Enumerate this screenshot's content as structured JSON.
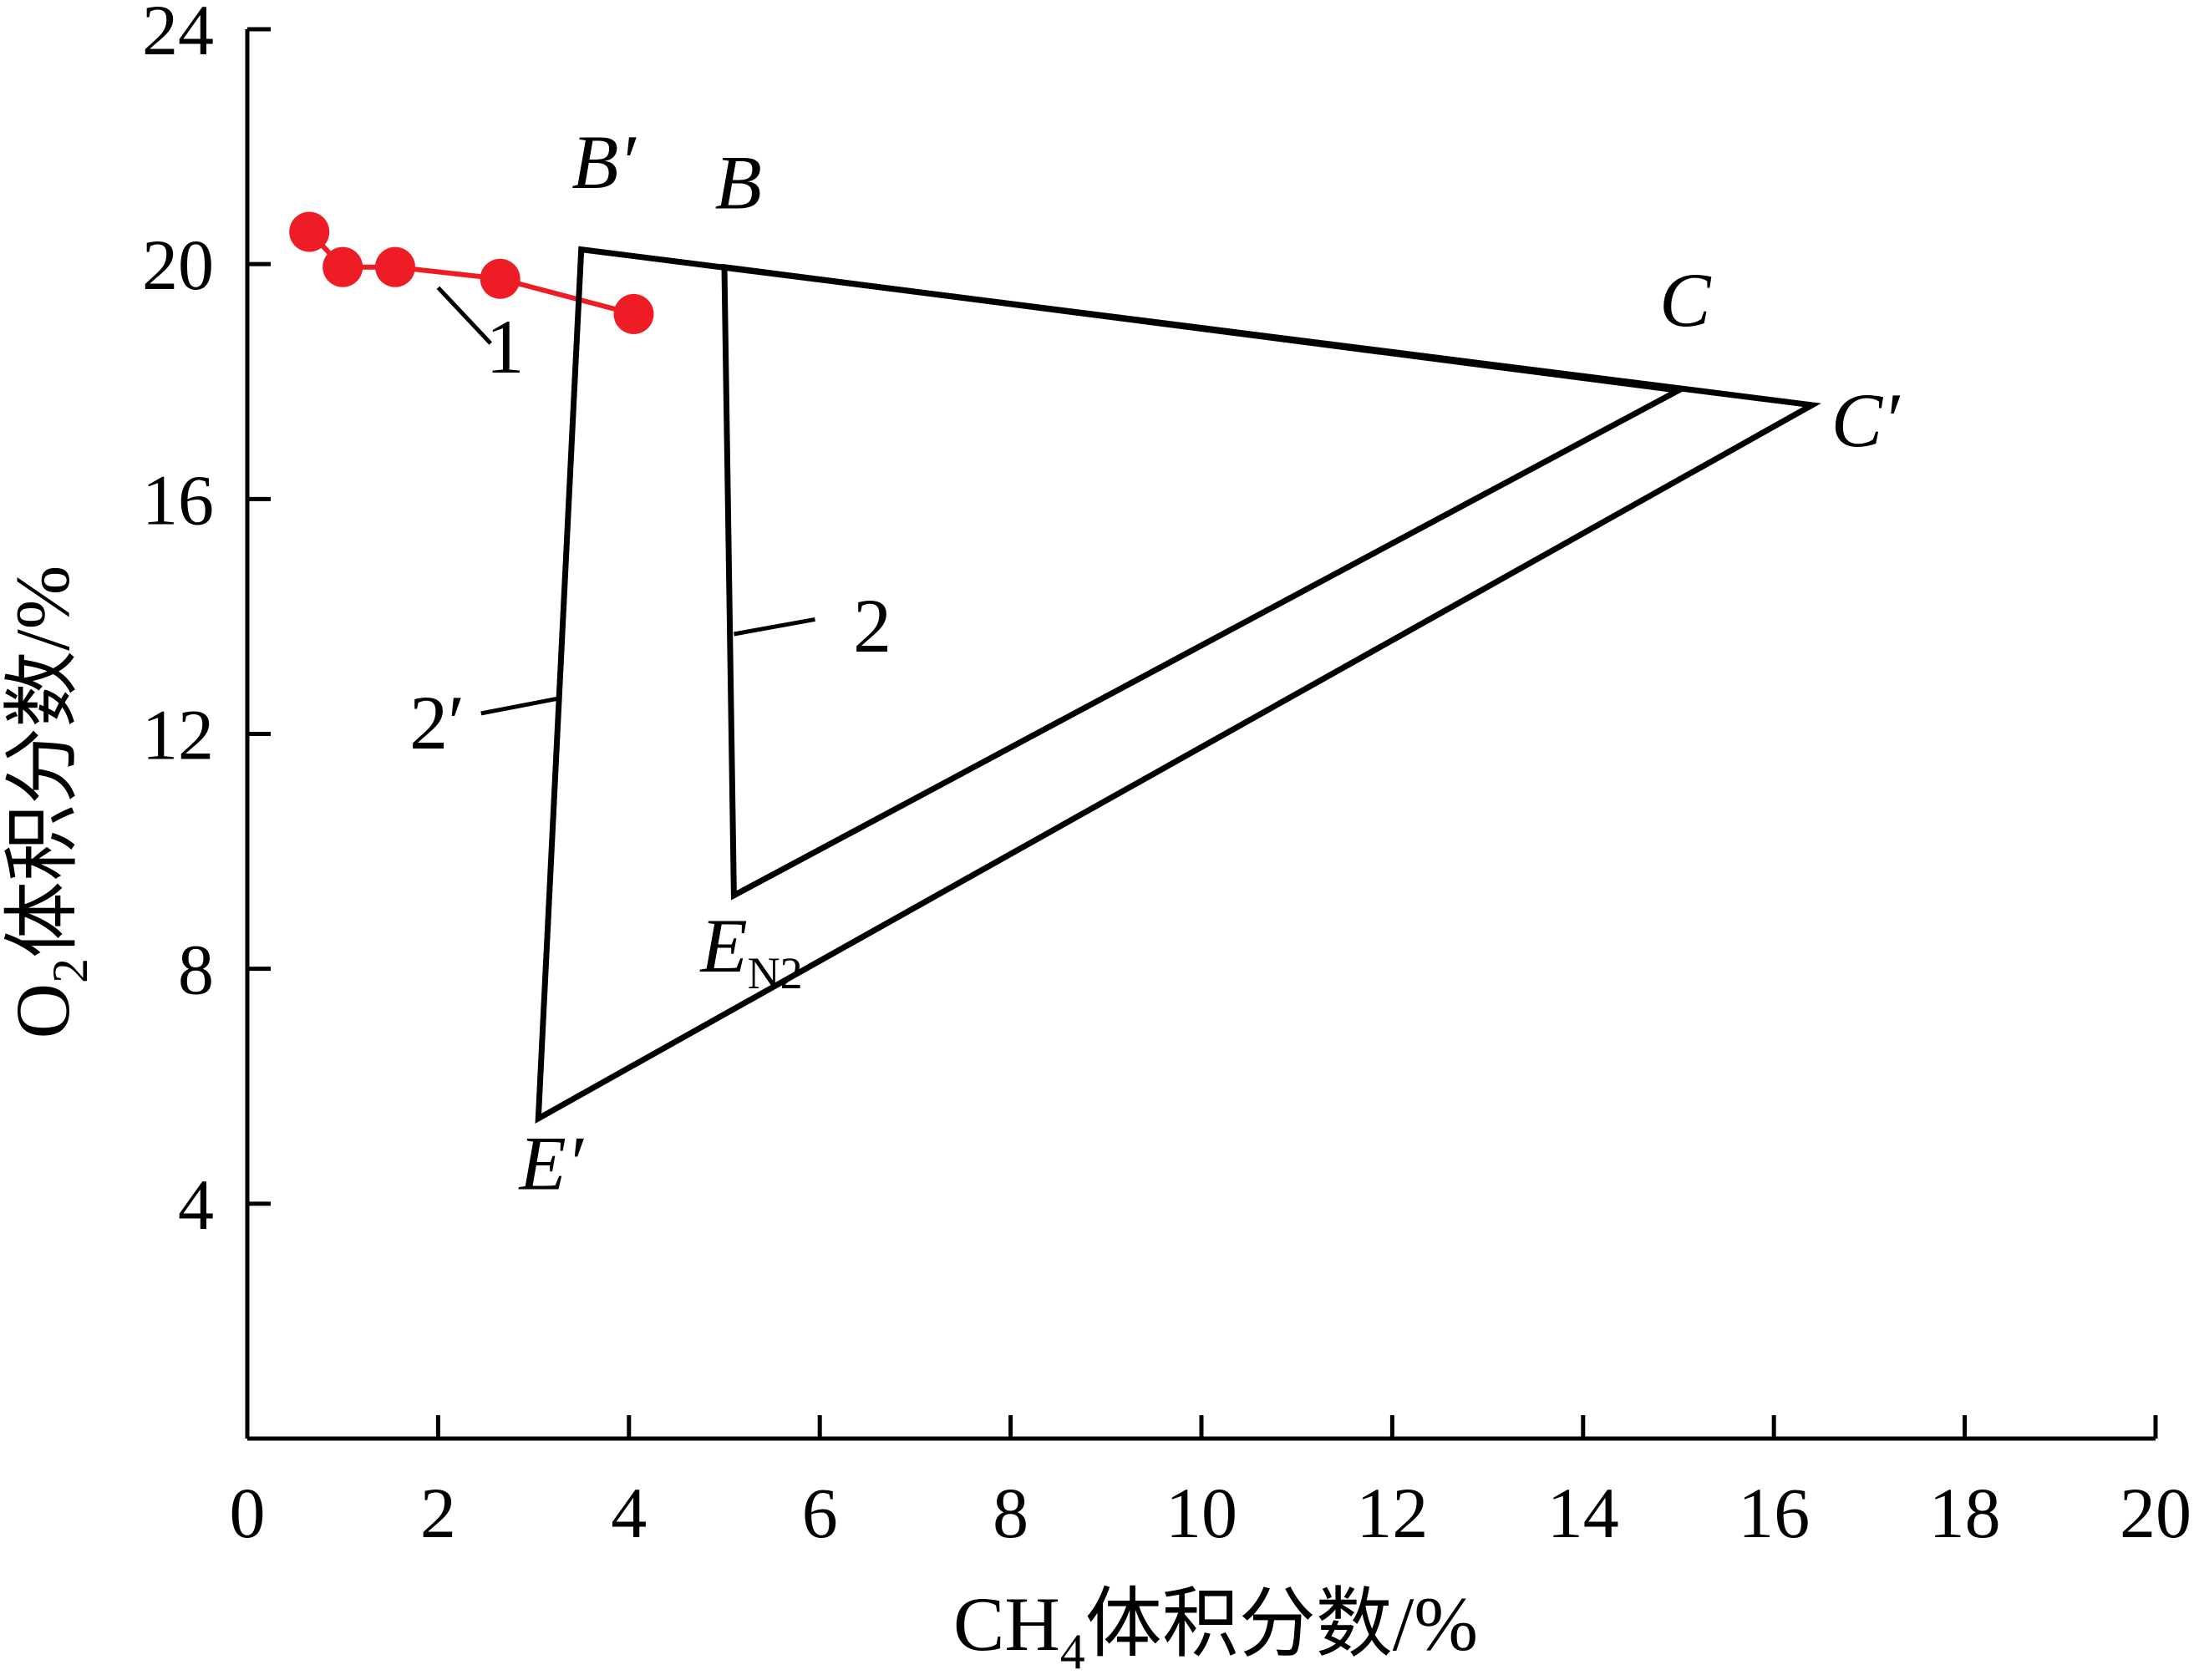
{
  "chart_data": {
    "type": "line",
    "xlabel": "CH4体积分数/%",
    "ylabel": "O2体积分数/%",
    "xlim": [
      0,
      20
    ],
    "ylim": [
      0,
      24
    ],
    "xticks": [
      0,
      2,
      4,
      6,
      8,
      10,
      12,
      14,
      16,
      18,
      20
    ],
    "yticks": [
      4,
      8,
      12,
      16,
      20,
      24
    ],
    "grid": false,
    "colors": {
      "axis": "#000000",
      "series_1": "#ee1c24",
      "region": "#000000"
    },
    "series": [
      {
        "name": "1",
        "marker": "circle",
        "x": [
          0.65,
          1.0,
          1.55,
          2.65,
          4.05
        ],
        "y": [
          20.55,
          19.95,
          19.95,
          19.75,
          19.15
        ]
      },
      {
        "name": "2",
        "closed": true,
        "x": [
          5.0,
          15.0,
          5.1
        ],
        "y": [
          19.95,
          17.85,
          9.25
        ]
      },
      {
        "name": "2′",
        "closed": true,
        "x": [
          3.5,
          16.4,
          3.05
        ],
        "y": [
          20.25,
          17.6,
          5.45
        ]
      }
    ],
    "annotations": [
      {
        "text": "B′",
        "x": 3.4,
        "y": 21.3
      },
      {
        "text": "B",
        "x": 4.9,
        "y": 20.95
      },
      {
        "text": "C",
        "x": 14.8,
        "y": 18.95
      },
      {
        "text": "C′",
        "x": 16.6,
        "y": 16.9
      },
      {
        "text": "E",
        "sub": "N2",
        "x": 4.75,
        "y": 7.95
      },
      {
        "text": "E′",
        "x": 2.85,
        "y": 4.25
      },
      {
        "text": "1",
        "x": 2.5,
        "y": 18.15
      },
      {
        "text": "2",
        "x": 6.35,
        "y": 13.4
      },
      {
        "text": "2′",
        "x": 1.7,
        "y": 11.75
      }
    ]
  }
}
